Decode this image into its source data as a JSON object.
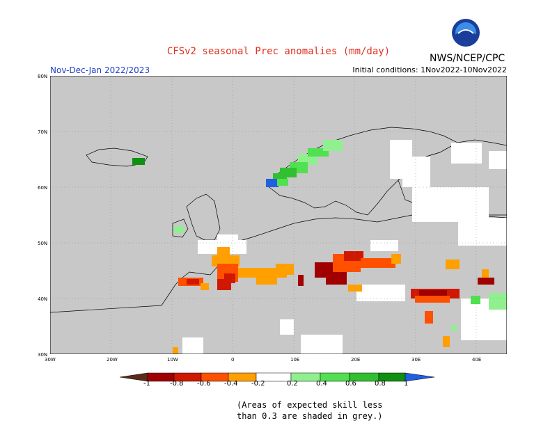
{
  "title": "CFSv2 seasonal Prec anomalies (mm/day)",
  "organization": "NWS/NCEP/CPC",
  "logo_text": "NOAA",
  "period": "Nov-Dec-Jan 2022/2023",
  "initial_conditions": "Initial conditions: 1Nov2022-10Nov2022",
  "lat_labels": [
    "80N",
    "70N",
    "60N",
    "50N",
    "40N",
    "30N"
  ],
  "lon_labels": [
    "30W",
    "20W",
    "10W",
    "0",
    "10E",
    "20E",
    "30E",
    "40E"
  ],
  "colorbar_labels": [
    "-1",
    "-0.8",
    "-0.6",
    "-0.4",
    "-0.2",
    "0.2",
    "0.4",
    "0.6",
    "0.8",
    "1"
  ],
  "colors": {
    "dry_extreme": "#5a2a1a",
    "dry_1": "#a00000",
    "dry_2": "#d01800",
    "dry_3": "#ff5000",
    "dry_4": "#ffa000",
    "neutral": "#ffffff",
    "wet_1": "#90f090",
    "wet_2": "#50e050",
    "wet_3": "#30c030",
    "wet_4": "#109010",
    "wet_extreme": "#2060e0",
    "low_skill": "#c8c8c8",
    "title": "#e03020",
    "period": "#2040c8"
  },
  "note_line1": "(Areas of expected skill less",
  "note_line2": "than 0.3 are shaded in grey.)"
}
